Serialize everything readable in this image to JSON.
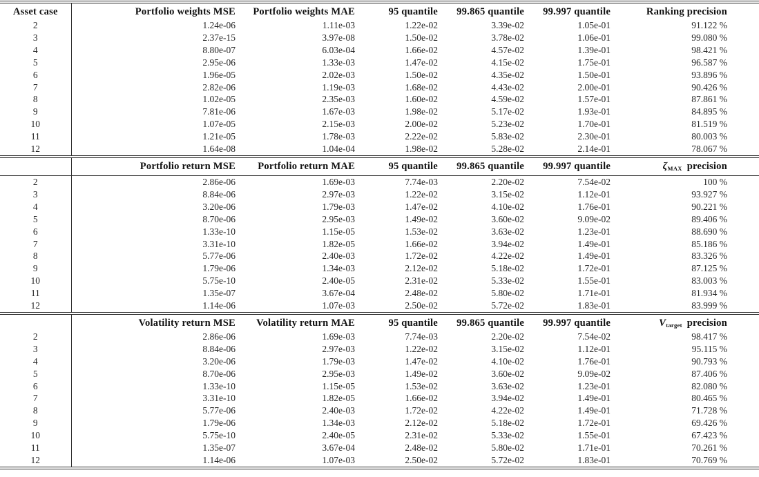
{
  "table": {
    "sections": [
      {
        "header": [
          "Asset case",
          "Portfolio weights MSE",
          "Portfolio weights MAE",
          "95 quantile",
          "99.865 quantile",
          "99.997 quantile"
        ],
        "precision_header": {
          "symbol": "",
          "sub": "",
          "label": "Ranking precision"
        },
        "rows": [
          [
            "2",
            "1.24e-06",
            "1.11e-03",
            "1.22e-02",
            "3.39e-02",
            "1.05e-01",
            "91.122 %"
          ],
          [
            "3",
            "2.37e-15",
            "3.97e-08",
            "1.50e-02",
            "3.78e-02",
            "1.06e-01",
            "99.080 %"
          ],
          [
            "4",
            "8.80e-07",
            "6.03e-04",
            "1.66e-02",
            "4.57e-02",
            "1.39e-01",
            "98.421 %"
          ],
          [
            "5",
            "2.95e-06",
            "1.33e-03",
            "1.47e-02",
            "4.15e-02",
            "1.75e-01",
            "96.587 %"
          ],
          [
            "6",
            "1.96e-05",
            "2.02e-03",
            "1.50e-02",
            "4.35e-02",
            "1.50e-01",
            "93.896 %"
          ],
          [
            "7",
            "2.82e-06",
            "1.19e-03",
            "1.68e-02",
            "4.43e-02",
            "2.00e-01",
            "90.426 %"
          ],
          [
            "8",
            "1.02e-05",
            "2.35e-03",
            "1.60e-02",
            "4.59e-02",
            "1.57e-01",
            "87.861 %"
          ],
          [
            "9",
            "7.81e-06",
            "1.67e-03",
            "1.98e-02",
            "5.17e-02",
            "1.93e-01",
            "84.895 %"
          ],
          [
            "10",
            "1.07e-05",
            "2.15e-03",
            "2.00e-02",
            "5.23e-02",
            "1.70e-01",
            "81.519 %"
          ],
          [
            "11",
            "1.21e-05",
            "1.78e-03",
            "2.22e-02",
            "5.83e-02",
            "2.30e-01",
            "80.003 %"
          ],
          [
            "12",
            "1.64e-08",
            "1.04e-04",
            "1.98e-02",
            "5.28e-02",
            "2.14e-01",
            "78.067 %"
          ]
        ],
        "rule_below_header": false
      },
      {
        "header": [
          "",
          "Portfolio return MSE",
          "Portfolio return MAE",
          "95 quantile",
          "99.865 quantile",
          "99.997 quantile"
        ],
        "precision_header": {
          "symbol": "ζ",
          "sub": "MAX",
          "label": "precision"
        },
        "rows": [
          [
            "2",
            "2.86e-06",
            "1.69e-03",
            "7.74e-03",
            "2.20e-02",
            "7.54e-02",
            "100 %"
          ],
          [
            "3",
            "8.84e-06",
            "2.97e-03",
            "1.22e-02",
            "3.15e-02",
            "1.12e-01",
            "93.927 %"
          ],
          [
            "4",
            "3.20e-06",
            "1.79e-03",
            "1.47e-02",
            "4.10e-02",
            "1.76e-01",
            "90.221 %"
          ],
          [
            "5",
            "8.70e-06",
            "2.95e-03",
            "1.49e-02",
            "3.60e-02",
            "9.09e-02",
            "89.406 %"
          ],
          [
            "6",
            "1.33e-10",
            "1.15e-05",
            "1.53e-02",
            "3.63e-02",
            "1.23e-01",
            "88.690 %"
          ],
          [
            "7",
            "3.31e-10",
            "1.82e-05",
            "1.66e-02",
            "3.94e-02",
            "1.49e-01",
            "85.186 %"
          ],
          [
            "8",
            "5.77e-06",
            "2.40e-03",
            "1.72e-02",
            "4.22e-02",
            "1.49e-01",
            "83.326 %"
          ],
          [
            "9",
            "1.79e-06",
            "1.34e-03",
            "2.12e-02",
            "5.18e-02",
            "1.72e-01",
            "87.125 %"
          ],
          [
            "10",
            "5.75e-10",
            "2.40e-05",
            "2.31e-02",
            "5.33e-02",
            "1.55e-01",
            "83.003 %"
          ],
          [
            "11",
            "1.35e-07",
            "3.67e-04",
            "2.48e-02",
            "5.80e-02",
            "1.71e-01",
            "81.934 %"
          ],
          [
            "12",
            "1.14e-06",
            "1.07e-03",
            "2.50e-02",
            "5.72e-02",
            "1.83e-01",
            "83.999 %"
          ]
        ],
        "rule_below_header": true
      },
      {
        "header": [
          "",
          "Volatility return MSE",
          "Volatility return MAE",
          "95 quantile",
          "99.865 quantile",
          "99.997 quantile"
        ],
        "precision_header": {
          "symbol": "V",
          "sub": "target",
          "label": "precision"
        },
        "rows": [
          [
            "2",
            "2.86e-06",
            "1.69e-03",
            "7.74e-03",
            "2.20e-02",
            "7.54e-02",
            "98.417 %"
          ],
          [
            "3",
            "8.84e-06",
            "2.97e-03",
            "1.22e-02",
            "3.15e-02",
            "1.12e-01",
            "95.115 %"
          ],
          [
            "4",
            "3.20e-06",
            "1.79e-03",
            "1.47e-02",
            "4.10e-02",
            "1.76e-01",
            "90.793 %"
          ],
          [
            "5",
            "8.70e-06",
            "2.95e-03",
            "1.49e-02",
            "3.60e-02",
            "9.09e-02",
            "87.406 %"
          ],
          [
            "6",
            "1.33e-10",
            "1.15e-05",
            "1.53e-02",
            "3.63e-02",
            "1.23e-01",
            "82.080 %"
          ],
          [
            "7",
            "3.31e-10",
            "1.82e-05",
            "1.66e-02",
            "3.94e-02",
            "1.49e-01",
            "80.465 %"
          ],
          [
            "8",
            "5.77e-06",
            "2.40e-03",
            "1.72e-02",
            "4.22e-02",
            "1.49e-01",
            "71.728 %"
          ],
          [
            "9",
            "1.79e-06",
            "1.34e-03",
            "2.12e-02",
            "5.18e-02",
            "1.72e-01",
            "69.426 %"
          ],
          [
            "10",
            "5.75e-10",
            "2.40e-05",
            "2.31e-02",
            "5.33e-02",
            "1.55e-01",
            "67.423 %"
          ],
          [
            "11",
            "1.35e-07",
            "3.67e-04",
            "2.48e-02",
            "5.80e-02",
            "1.71e-01",
            "70.261 %"
          ],
          [
            "12",
            "1.14e-06",
            "1.07e-03",
            "2.50e-02",
            "5.72e-02",
            "1.83e-01",
            "70.769 %"
          ]
        ],
        "rule_below_header": false
      }
    ],
    "colors": {
      "rule": "#2b2b2b",
      "text": "#252525",
      "background": "#ffffff"
    }
  }
}
